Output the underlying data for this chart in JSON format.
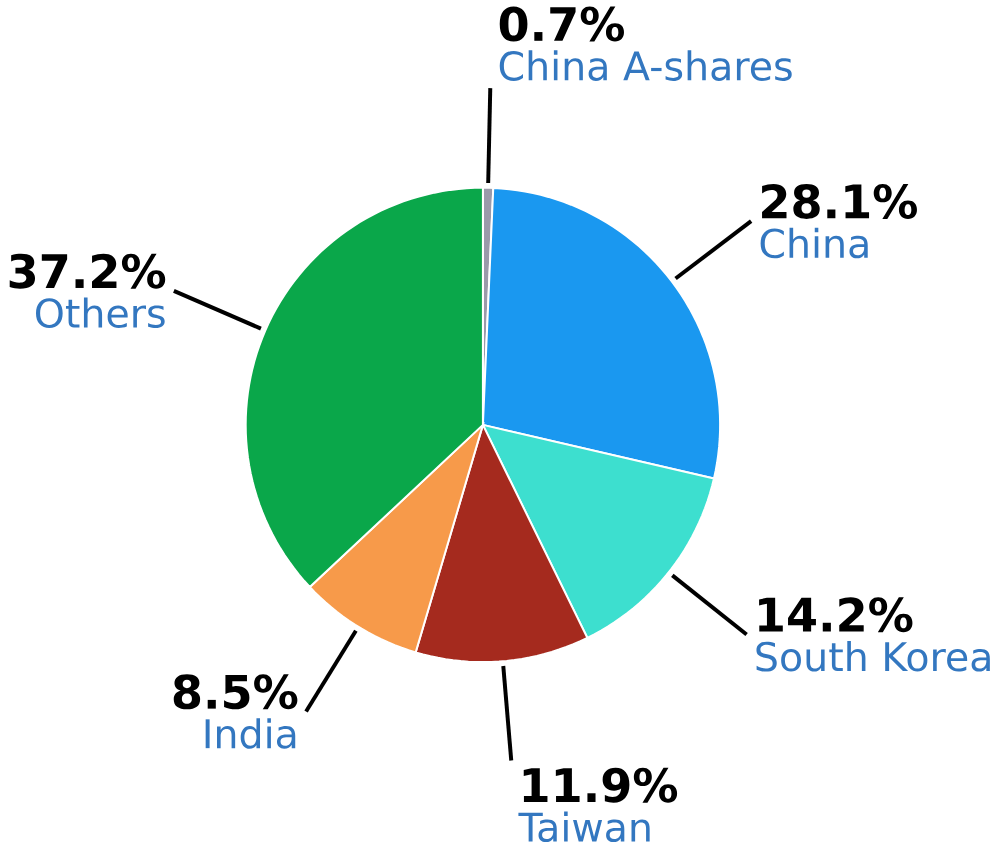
{
  "chart_data": {
    "type": "pie",
    "categories": [
      "China A-shares",
      "China",
      "South Korea",
      "Taiwan",
      "India",
      "Others"
    ],
    "values": [
      0.7,
      28.1,
      14.2,
      11.9,
      8.5,
      37.2
    ],
    "value_labels": [
      "0.7%",
      "28.1%",
      "14.2%",
      "11.9%",
      "8.5%",
      "37.2%"
    ],
    "colors": [
      "#9a9aaa",
      "#1a98f0",
      "#3ddfcf",
      "#a52a1e",
      "#f79a4a",
      "#0aa74a"
    ]
  }
}
